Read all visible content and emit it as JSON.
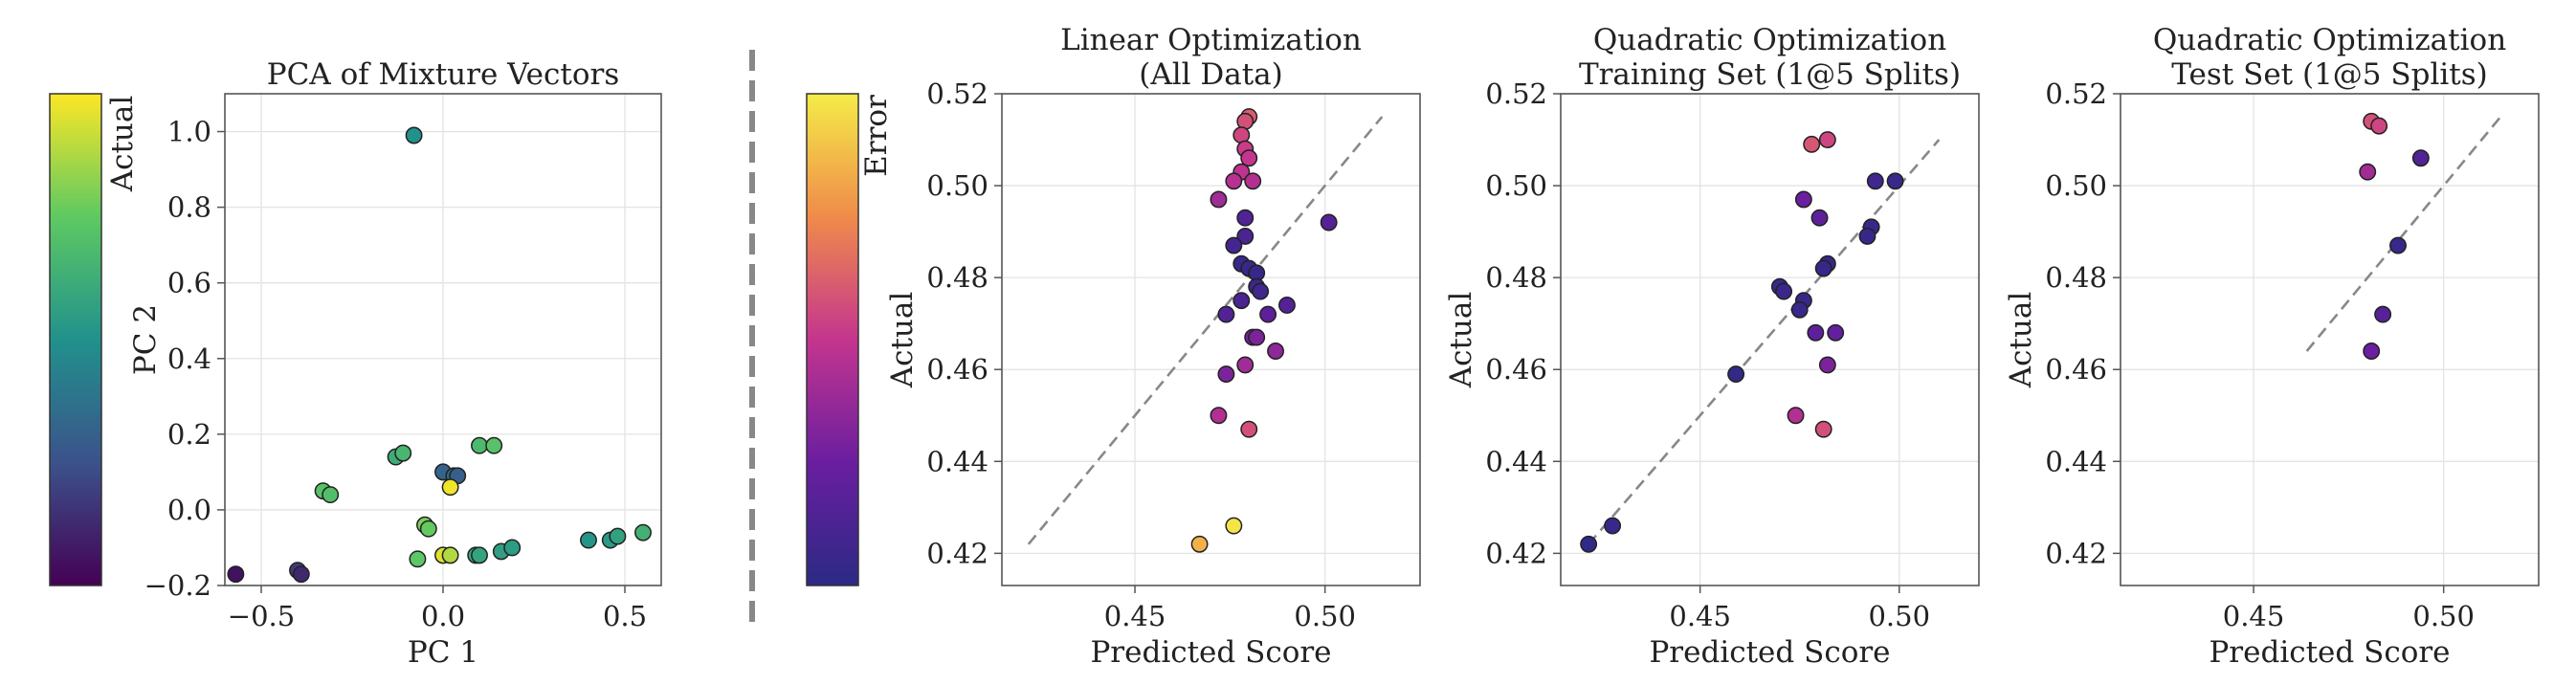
{
  "figure": {
    "colors": {
      "frame": "#555555",
      "grid": "#e3e3e3",
      "diag": "#888888",
      "divider": "#888888"
    },
    "colorbars": [
      {
        "label": "Actual",
        "colormap": "viridis",
        "stops": [
          "#440154",
          "#3b528b",
          "#21918c",
          "#5ec962",
          "#fde725"
        ]
      },
      {
        "label": "Error",
        "colormap": "plasma",
        "stops": [
          "#2c2a84",
          "#6a1ea0",
          "#c4358e",
          "#f08b4a",
          "#f4ec48"
        ]
      }
    ]
  },
  "chart_data": [
    {
      "type": "scatter",
      "title": [
        "PCA of Mixture Vectors"
      ],
      "xlabel": "PC 1",
      "ylabel": "PC 2",
      "xlim": [
        -0.6,
        0.6
      ],
      "ylim": [
        -0.2,
        1.1
      ],
      "xticks": [
        -0.5,
        0.0,
        0.5
      ],
      "xtick_labels": [
        "−0.5",
        "0.0",
        "0.5"
      ],
      "yticks": [
        -0.2,
        0.0,
        0.2,
        0.4,
        0.6,
        0.8,
        1.0
      ],
      "ytick_labels": [
        "−0.2",
        "0.0",
        "0.2",
        "0.4",
        "0.6",
        "0.8",
        "1.0"
      ],
      "grid": true,
      "color_by": "Actual",
      "cmap": "viridis",
      "points": [
        {
          "x": -0.08,
          "y": 0.99,
          "c": 0.5
        },
        {
          "x": -0.57,
          "y": -0.17,
          "c": 0.05
        },
        {
          "x": -0.4,
          "y": -0.16,
          "c": 0.18
        },
        {
          "x": -0.39,
          "y": -0.17,
          "c": 0.12
        },
        {
          "x": -0.33,
          "y": 0.05,
          "c": 0.72
        },
        {
          "x": -0.31,
          "y": 0.04,
          "c": 0.7
        },
        {
          "x": -0.13,
          "y": 0.14,
          "c": 0.62
        },
        {
          "x": -0.11,
          "y": 0.15,
          "c": 0.66
        },
        {
          "x": -0.07,
          "y": -0.13,
          "c": 0.74
        },
        {
          "x": -0.05,
          "y": -0.04,
          "c": 0.8
        },
        {
          "x": -0.04,
          "y": -0.05,
          "c": 0.76
        },
        {
          "x": 0.0,
          "y": -0.12,
          "c": 0.95
        },
        {
          "x": 0.02,
          "y": -0.12,
          "c": 0.88
        },
        {
          "x": 0.0,
          "y": 0.1,
          "c": 0.32
        },
        {
          "x": 0.03,
          "y": 0.09,
          "c": 0.36
        },
        {
          "x": 0.04,
          "y": 0.09,
          "c": 0.3
        },
        {
          "x": 0.02,
          "y": 0.06,
          "c": 0.98
        },
        {
          "x": 0.09,
          "y": -0.12,
          "c": 0.6
        },
        {
          "x": 0.1,
          "y": -0.12,
          "c": 0.58
        },
        {
          "x": 0.1,
          "y": 0.17,
          "c": 0.68
        },
        {
          "x": 0.14,
          "y": 0.17,
          "c": 0.72
        },
        {
          "x": 0.16,
          "y": -0.11,
          "c": 0.56
        },
        {
          "x": 0.19,
          "y": -0.1,
          "c": 0.55
        },
        {
          "x": 0.4,
          "y": -0.08,
          "c": 0.52
        },
        {
          "x": 0.46,
          "y": -0.08,
          "c": 0.54
        },
        {
          "x": 0.48,
          "y": -0.07,
          "c": 0.57
        },
        {
          "x": 0.55,
          "y": -0.06,
          "c": 0.64
        }
      ]
    },
    {
      "type": "scatter",
      "title": [
        "Linear Optimization",
        "(All Data)"
      ],
      "xlabel": "Predicted Score",
      "ylabel": "Actual",
      "xlim": [
        0.415,
        0.525
      ],
      "ylim": [
        0.413,
        0.52
      ],
      "xticks": [
        0.45,
        0.5
      ],
      "xtick_labels": [
        "0.45",
        "0.50"
      ],
      "yticks": [
        0.42,
        0.44,
        0.46,
        0.48,
        0.5,
        0.52
      ],
      "ytick_labels": [
        "0.42",
        "0.44",
        "0.46",
        "0.48",
        "0.50",
        "0.52"
      ],
      "grid": true,
      "diagonal": [
        0.422,
        0.515
      ],
      "color_by": "Error",
      "cmap": "plasma",
      "points": [
        {
          "x": 0.48,
          "y": 0.515,
          "c": 0.62
        },
        {
          "x": 0.479,
          "y": 0.514,
          "c": 0.58
        },
        {
          "x": 0.478,
          "y": 0.511,
          "c": 0.55
        },
        {
          "x": 0.479,
          "y": 0.508,
          "c": 0.52
        },
        {
          "x": 0.48,
          "y": 0.506,
          "c": 0.5
        },
        {
          "x": 0.478,
          "y": 0.503,
          "c": 0.48
        },
        {
          "x": 0.476,
          "y": 0.501,
          "c": 0.46
        },
        {
          "x": 0.481,
          "y": 0.501,
          "c": 0.45
        },
        {
          "x": 0.472,
          "y": 0.497,
          "c": 0.4
        },
        {
          "x": 0.479,
          "y": 0.493,
          "c": 0.15
        },
        {
          "x": 0.501,
          "y": 0.492,
          "c": 0.16
        },
        {
          "x": 0.479,
          "y": 0.489,
          "c": 0.12
        },
        {
          "x": 0.476,
          "y": 0.487,
          "c": 0.1
        },
        {
          "x": 0.478,
          "y": 0.483,
          "c": 0.05
        },
        {
          "x": 0.48,
          "y": 0.482,
          "c": 0.05
        },
        {
          "x": 0.482,
          "y": 0.481,
          "c": 0.04
        },
        {
          "x": 0.482,
          "y": 0.478,
          "c": 0.06
        },
        {
          "x": 0.483,
          "y": 0.477,
          "c": 0.08
        },
        {
          "x": 0.478,
          "y": 0.475,
          "c": 0.12
        },
        {
          "x": 0.49,
          "y": 0.474,
          "c": 0.16
        },
        {
          "x": 0.474,
          "y": 0.472,
          "c": 0.15
        },
        {
          "x": 0.485,
          "y": 0.472,
          "c": 0.2
        },
        {
          "x": 0.481,
          "y": 0.467,
          "c": 0.28
        },
        {
          "x": 0.482,
          "y": 0.467,
          "c": 0.3
        },
        {
          "x": 0.487,
          "y": 0.464,
          "c": 0.35
        },
        {
          "x": 0.479,
          "y": 0.461,
          "c": 0.4
        },
        {
          "x": 0.474,
          "y": 0.459,
          "c": 0.3
        },
        {
          "x": 0.472,
          "y": 0.45,
          "c": 0.45
        },
        {
          "x": 0.48,
          "y": 0.447,
          "c": 0.58
        },
        {
          "x": 0.467,
          "y": 0.422,
          "c": 0.85
        },
        {
          "x": 0.476,
          "y": 0.426,
          "c": 0.98
        }
      ]
    },
    {
      "type": "scatter",
      "title": [
        "Quadratic Optimization",
        "Training Set (1@5 Splits)"
      ],
      "xlabel": "Predicted Score",
      "ylabel": "Actual",
      "xlim": [
        0.415,
        0.52
      ],
      "ylim": [
        0.413,
        0.52
      ],
      "xticks": [
        0.45,
        0.5
      ],
      "xtick_labels": [
        "0.45",
        "0.50"
      ],
      "yticks": [
        0.42,
        0.44,
        0.46,
        0.48,
        0.5,
        0.52
      ],
      "ytick_labels": [
        "0.42",
        "0.44",
        "0.46",
        "0.48",
        "0.50",
        "0.52"
      ],
      "grid": true,
      "diagonal": [
        0.422,
        0.51
      ],
      "color_by": "Error",
      "cmap": "plasma",
      "points": [
        {
          "x": 0.482,
          "y": 0.51,
          "c": 0.55
        },
        {
          "x": 0.478,
          "y": 0.509,
          "c": 0.6
        },
        {
          "x": 0.494,
          "y": 0.501,
          "c": 0.08
        },
        {
          "x": 0.499,
          "y": 0.501,
          "c": 0.05
        },
        {
          "x": 0.476,
          "y": 0.497,
          "c": 0.25
        },
        {
          "x": 0.48,
          "y": 0.493,
          "c": 0.2
        },
        {
          "x": 0.493,
          "y": 0.491,
          "c": 0.05
        },
        {
          "x": 0.492,
          "y": 0.489,
          "c": 0.04
        },
        {
          "x": 0.482,
          "y": 0.483,
          "c": 0.04
        },
        {
          "x": 0.481,
          "y": 0.482,
          "c": 0.04
        },
        {
          "x": 0.47,
          "y": 0.478,
          "c": 0.05
        },
        {
          "x": 0.471,
          "y": 0.477,
          "c": 0.06
        },
        {
          "x": 0.476,
          "y": 0.475,
          "c": 0.05
        },
        {
          "x": 0.475,
          "y": 0.473,
          "c": 0.05
        },
        {
          "x": 0.479,
          "y": 0.468,
          "c": 0.2
        },
        {
          "x": 0.484,
          "y": 0.468,
          "c": 0.22
        },
        {
          "x": 0.482,
          "y": 0.461,
          "c": 0.3
        },
        {
          "x": 0.459,
          "y": 0.459,
          "c": 0.03
        },
        {
          "x": 0.474,
          "y": 0.45,
          "c": 0.45
        },
        {
          "x": 0.481,
          "y": 0.447,
          "c": 0.58
        },
        {
          "x": 0.422,
          "y": 0.422,
          "c": 0.02
        },
        {
          "x": 0.428,
          "y": 0.426,
          "c": 0.05
        }
      ]
    },
    {
      "type": "scatter",
      "title": [
        "Quadratic Optimization",
        "Test Set (1@5 Splits)"
      ],
      "xlabel": "Predicted Score",
      "ylabel": "Actual",
      "xlim": [
        0.415,
        0.525
      ],
      "ylim": [
        0.413,
        0.52
      ],
      "xticks": [
        0.45,
        0.5
      ],
      "xtick_labels": [
        "0.45",
        "0.50"
      ],
      "yticks": [
        0.42,
        0.44,
        0.46,
        0.48,
        0.5,
        0.52
      ],
      "ytick_labels": [
        "0.42",
        "0.44",
        "0.46",
        "0.48",
        "0.50",
        "0.52"
      ],
      "grid": true,
      "diagonal": [
        0.464,
        0.515
      ],
      "color_by": "Error",
      "cmap": "plasma",
      "points": [
        {
          "x": 0.481,
          "y": 0.514,
          "c": 0.58
        },
        {
          "x": 0.483,
          "y": 0.513,
          "c": 0.55
        },
        {
          "x": 0.48,
          "y": 0.503,
          "c": 0.4
        },
        {
          "x": 0.494,
          "y": 0.506,
          "c": 0.15
        },
        {
          "x": 0.488,
          "y": 0.487,
          "c": 0.05
        },
        {
          "x": 0.484,
          "y": 0.472,
          "c": 0.18
        },
        {
          "x": 0.481,
          "y": 0.464,
          "c": 0.25
        }
      ]
    }
  ]
}
